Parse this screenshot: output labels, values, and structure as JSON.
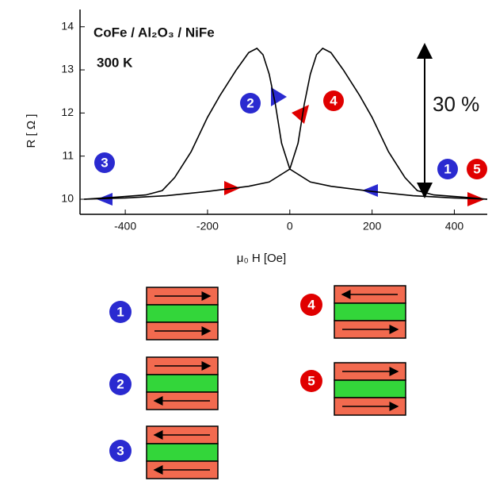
{
  "chart_data": {
    "type": "line",
    "annotations": {
      "sample": "CoFe / Al₂O₃ / NiFe",
      "temperature": "300 K",
      "ratio": "30 %"
    },
    "xlabel": "μ₀ H  [Oe]",
    "ylabel": "R [ Ω ]",
    "xlim": [
      -510,
      480
    ],
    "ylim": [
      9.65,
      14.4
    ],
    "xticks": [
      -400,
      -200,
      0,
      200,
      400
    ],
    "yticks": [
      10,
      11,
      12,
      13,
      14
    ],
    "series": [
      {
        "color": "#000000",
        "x": [
          480,
          400,
          300,
          200,
          100,
          50,
          0,
          -20,
          -35,
          -50,
          -65,
          -80,
          -100,
          -130,
          -170,
          -200,
          -240,
          -280,
          -310,
          -350,
          -420,
          -500
        ],
        "values": [
          10.0,
          10.03,
          10.08,
          10.18,
          10.3,
          10.4,
          10.7,
          11.3,
          12.2,
          12.9,
          13.35,
          13.5,
          13.4,
          13.0,
          12.4,
          11.9,
          11.1,
          10.5,
          10.2,
          10.1,
          10.05,
          10.0
        ]
      },
      {
        "color": "#000000",
        "x": [
          -500,
          -400,
          -300,
          -200,
          -100,
          -50,
          0,
          20,
          35,
          50,
          65,
          80,
          100,
          130,
          170,
          200,
          240,
          280,
          310,
          350,
          420,
          480
        ],
        "values": [
          10.0,
          10.03,
          10.08,
          10.18,
          10.3,
          10.4,
          10.7,
          11.3,
          12.2,
          12.9,
          13.35,
          13.5,
          13.4,
          13.0,
          12.4,
          11.9,
          11.1,
          10.5,
          10.2,
          10.1,
          10.05,
          10.0
        ]
      }
    ],
    "point_labels": [
      "1",
      "2",
      "3",
      "4",
      "5"
    ]
  },
  "configurations": {
    "labels": [
      "1",
      "2",
      "3",
      "4",
      "5"
    ]
  }
}
